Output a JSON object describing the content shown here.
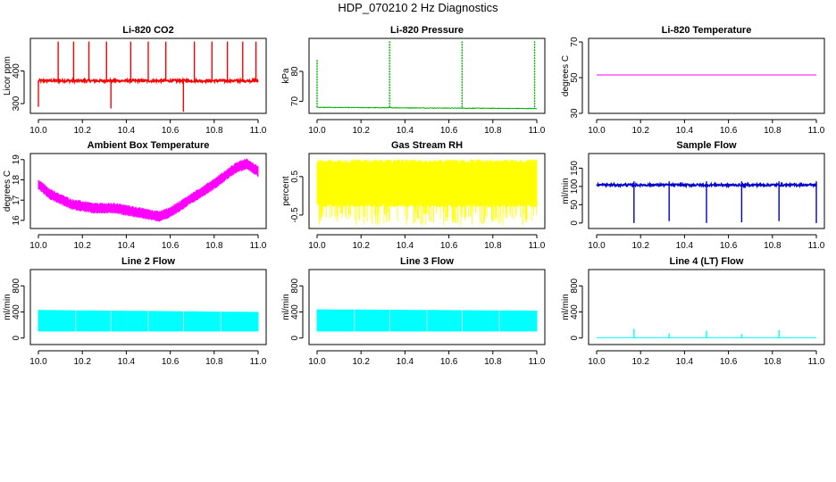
{
  "main_title": "HDP_070210  2 Hz Diagnostics",
  "x_ticks": [
    "10.0",
    "10.2",
    "10.4",
    "10.6",
    "10.8",
    "11.0"
  ],
  "chart_data": [
    {
      "id": "co2",
      "type": "line",
      "title": "Li-820 CO2",
      "ylabel": "Licor ppm",
      "color": "#ff0000",
      "xlim": [
        10.0,
        11.0
      ],
      "ylim": [
        270,
        500
      ],
      "yticks": [
        "300",
        "400"
      ],
      "baseline": 370,
      "noise": 4,
      "spikes": [
        {
          "x": 10.0,
          "y": 290
        },
        {
          "x": 10.09,
          "y": 490
        },
        {
          "x": 10.16,
          "y": 490
        },
        {
          "x": 10.23,
          "y": 490
        },
        {
          "x": 10.31,
          "y": 490
        },
        {
          "x": 10.33,
          "y": 285
        },
        {
          "x": 10.42,
          "y": 490
        },
        {
          "x": 10.5,
          "y": 490
        },
        {
          "x": 10.58,
          "y": 490
        },
        {
          "x": 10.66,
          "y": 275
        },
        {
          "x": 10.71,
          "y": 490
        },
        {
          "x": 10.79,
          "y": 490
        },
        {
          "x": 10.86,
          "y": 490
        },
        {
          "x": 10.93,
          "y": 490
        },
        {
          "x": 10.99,
          "y": 490
        }
      ]
    },
    {
      "id": "pressure",
      "type": "line",
      "title": "Li-820 Pressure",
      "ylabel": "kPa",
      "color": "#00b000",
      "xlim": [
        10.0,
        11.0
      ],
      "ylim": [
        66,
        91
      ],
      "yticks": [
        "70",
        "80"
      ],
      "baseline_start": 68.0,
      "baseline_end": 67.6,
      "noise": 0.1,
      "spikes": [
        {
          "x": 10.0,
          "y": 84
        },
        {
          "x": 10.33,
          "y": 90
        },
        {
          "x": 10.66,
          "y": 90
        },
        {
          "x": 10.99,
          "y": 90
        }
      ]
    },
    {
      "id": "temperature",
      "type": "line",
      "title": "Li-820 Temperature",
      "ylabel": "degrees C",
      "color": "#ff00ff",
      "xlim": [
        10.0,
        11.0
      ],
      "ylim": [
        30,
        72
      ],
      "yticks": [
        "30",
        "50",
        "70"
      ],
      "baseline": 51.5,
      "noise": 0
    },
    {
      "id": "ambient",
      "type": "line",
      "title": "Ambient Box Temperature",
      "ylabel": "degrees C",
      "color": "#ff00ff",
      "xlim": [
        10.0,
        11.0
      ],
      "ylim": [
        15.6,
        19.3
      ],
      "yticks": [
        "16",
        "17",
        "18",
        "19"
      ],
      "trend_x": [
        10.0,
        10.05,
        10.15,
        10.25,
        10.35,
        10.45,
        10.5,
        10.55,
        10.6,
        10.7,
        10.8,
        10.9,
        10.95,
        11.0
      ],
      "trend_y": [
        17.8,
        17.3,
        16.8,
        16.6,
        16.6,
        16.4,
        16.3,
        16.2,
        16.4,
        17.1,
        17.8,
        18.6,
        18.8,
        18.4
      ],
      "band": 0.55
    },
    {
      "id": "rh",
      "type": "line",
      "title": "Gas Stream RH",
      "ylabel": "percent",
      "color": "#ffff00",
      "xlim": [
        10.0,
        11.0
      ],
      "ylim": [
        -0.85,
        1.1
      ],
      "yticks": [
        "-0.5",
        "0.5"
      ],
      "band_low": -0.3,
      "band_high": 0.95,
      "dip": -0.78
    },
    {
      "id": "sample",
      "type": "line",
      "title": "Sample Flow",
      "ylabel": "ml/min",
      "color": "#0000cc",
      "xlim": [
        10.0,
        11.0
      ],
      "ylim": [
        -15,
        190
      ],
      "yticks": [
        "0",
        "50",
        "100",
        "150"
      ],
      "baseline": 104,
      "noise": 3,
      "dips": [
        {
          "x": 10.17,
          "y": 0
        },
        {
          "x": 10.33,
          "y": 5
        },
        {
          "x": 10.5,
          "y": 0
        },
        {
          "x": 10.66,
          "y": 2
        },
        {
          "x": 10.83,
          "y": 5
        },
        {
          "x": 11.0,
          "y": 0
        }
      ]
    },
    {
      "id": "line2",
      "type": "line",
      "title": "Line 2 Flow",
      "ylabel": "ml/min",
      "color": "#00ffff",
      "xlim": [
        10.0,
        11.0
      ],
      "ylim": [
        -100,
        1050
      ],
      "yticks": [
        "0",
        "400",
        "800"
      ],
      "band_low": 100,
      "band_high_start": 430,
      "band_high_end": 400,
      "gaps": [
        10.17,
        10.33,
        10.5,
        10.66,
        10.83
      ]
    },
    {
      "id": "line3",
      "type": "line",
      "title": "Line 3 Flow",
      "ylabel": "ml/min",
      "color": "#00ffff",
      "xlim": [
        10.0,
        11.0
      ],
      "ylim": [
        -100,
        1050
      ],
      "yticks": [
        "0",
        "400",
        "800"
      ],
      "band_low": 100,
      "band_high_start": 440,
      "band_high_end": 420,
      "gaps": [
        10.17,
        10.33,
        10.5,
        10.66,
        10.83
      ]
    },
    {
      "id": "line4",
      "type": "line",
      "title": "Line 4 (LT) Flow",
      "ylabel": "ml/min",
      "color": "#00ffff",
      "xlim": [
        10.0,
        11.0
      ],
      "ylim": [
        -100,
        1050
      ],
      "yticks": [
        "0",
        "400",
        "800"
      ],
      "baseline": 5,
      "spikes": [
        {
          "x": 10.17,
          "y": 140
        },
        {
          "x": 10.33,
          "y": 70
        },
        {
          "x": 10.5,
          "y": 110
        },
        {
          "x": 10.66,
          "y": 60
        },
        {
          "x": 10.83,
          "y": 120
        }
      ]
    }
  ]
}
